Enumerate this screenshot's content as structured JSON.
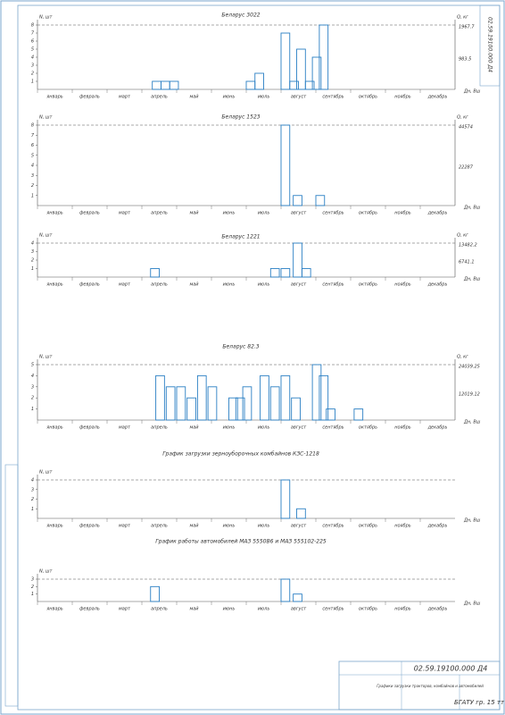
{
  "chart_data": [
    {
      "type": "bar",
      "title": "Беларус 3022",
      "y_label": "N, шт",
      "y2_label": "Q, кг",
      "y2_notes": [
        "1967.7",
        "983.5"
      ],
      "x_label": "Дн, Вш",
      "categories": [
        "январь",
        "февраль",
        "март",
        "апрель",
        "май",
        "июнь",
        "июль",
        "август",
        "сентябрь",
        "октябрь",
        "ноябрь",
        "декабрь"
      ],
      "x": [
        3.3,
        3.55,
        3.8,
        6.0,
        6.25,
        7.0,
        7.25,
        7.45,
        7.7,
        7.9,
        8.1
      ],
      "values": [
        1,
        1,
        1,
        1,
        2,
        7,
        1,
        5,
        1,
        4,
        8
      ],
      "ylim": [
        0,
        8
      ],
      "yticks": [
        1,
        2,
        3,
        4,
        5,
        6,
        7,
        8
      ],
      "color": "#2a7fc4"
    },
    {
      "type": "bar",
      "title": "Беларус 1523",
      "y_label": "N, шт",
      "y2_label": "Q, кг",
      "y2_notes": [
        "44574",
        "22287"
      ],
      "x_label": "Дн, Вш",
      "categories": [
        "январь",
        "февраль",
        "март",
        "апрель",
        "май",
        "июнь",
        "июль",
        "август",
        "сентябрь",
        "октябрь",
        "ноябрь",
        "декабрь"
      ],
      "x": [
        7.0,
        7.35,
        8.0
      ],
      "values": [
        8,
        1,
        1
      ],
      "ylim": [
        0,
        8
      ],
      "yticks": [
        1,
        2,
        3,
        4,
        5,
        6,
        7,
        8
      ],
      "color": "#2a7fc4"
    },
    {
      "type": "bar",
      "title": "Беларус 1221",
      "y_label": "N, шт",
      "y2_label": "Q, кг",
      "y2_notes": [
        "13482.2",
        "6741.1"
      ],
      "x_label": "Дн, Вш",
      "categories": [
        "январь",
        "февраль",
        "март",
        "апрель",
        "май",
        "июнь",
        "июль",
        "август",
        "сентябрь",
        "октябрь",
        "ноябрь",
        "декабрь"
      ],
      "x": [
        3.25,
        6.7,
        7.0,
        7.35,
        7.6
      ],
      "values": [
        1,
        1,
        1,
        4,
        1
      ],
      "ylim": [
        0,
        4
      ],
      "yticks": [
        1,
        2,
        3,
        4
      ],
      "color": "#2a7fc4"
    },
    {
      "type": "bar",
      "title": "Беларус 82.3",
      "y_label": "N, шт",
      "y2_label": "Q, кг",
      "y2_notes": [
        "24039.25",
        "12019.12"
      ],
      "x_label": "Дн, Вш",
      "categories": [
        "январь",
        "февраль",
        "март",
        "апрель",
        "май",
        "июнь",
        "июль",
        "август",
        "сентябрь",
        "октябрь",
        "ноябрь",
        "декабрь"
      ],
      "x": [
        3.4,
        3.7,
        4.0,
        4.3,
        4.6,
        4.9,
        5.5,
        5.7,
        5.9,
        6.4,
        6.7,
        7.0,
        7.3,
        7.9,
        8.1,
        8.3,
        9.1
      ],
      "values": [
        4,
        3,
        3,
        2,
        4,
        3,
        2,
        2,
        3,
        4,
        3,
        4,
        2,
        5,
        4,
        1,
        1
      ],
      "ylim": [
        0,
        5
      ],
      "yticks": [
        1,
        2,
        3,
        4,
        5
      ],
      "color": "#2a7fc4"
    },
    {
      "type": "bar",
      "title": "График загрузки зерноуборочных комбайнов КЗС-1218",
      "y_label": "N, шт",
      "x_label": "Дн, Вш",
      "categories": [
        "январь",
        "февраль",
        "март",
        "апрель",
        "май",
        "июнь",
        "июль",
        "август",
        "сентябрь",
        "октябрь",
        "ноябрь",
        "декабрь"
      ],
      "x": [
        7.0,
        7.45
      ],
      "values": [
        4,
        1
      ],
      "ylim": [
        0,
        4
      ],
      "yticks": [
        1,
        2,
        3,
        4
      ],
      "color": "#2a7fc4"
    },
    {
      "type": "bar",
      "title": "График работы автомобилей МАЗ 5550В6 и МАЗ 555102-225",
      "y_label": "N, шт",
      "x_label": "Дн, Вш",
      "categories": [
        "январь",
        "февраль",
        "март",
        "апрель",
        "май",
        "июнь",
        "июль",
        "август",
        "сентябрь",
        "октябрь",
        "ноябрь",
        "декабрь"
      ],
      "x": [
        3.25,
        7.0,
        7.35
      ],
      "values": [
        2,
        3,
        1
      ],
      "ylim": [
        0,
        3
      ],
      "yticks": [
        1,
        2,
        3
      ],
      "color": "#2a7fc4"
    }
  ],
  "title_block": {
    "code": "02.59.19100.000 Д4",
    "org": "БГАТУ гр. 15 тт",
    "desc": "Графики загрузки тракторов, комбайнов и автомобилей"
  }
}
